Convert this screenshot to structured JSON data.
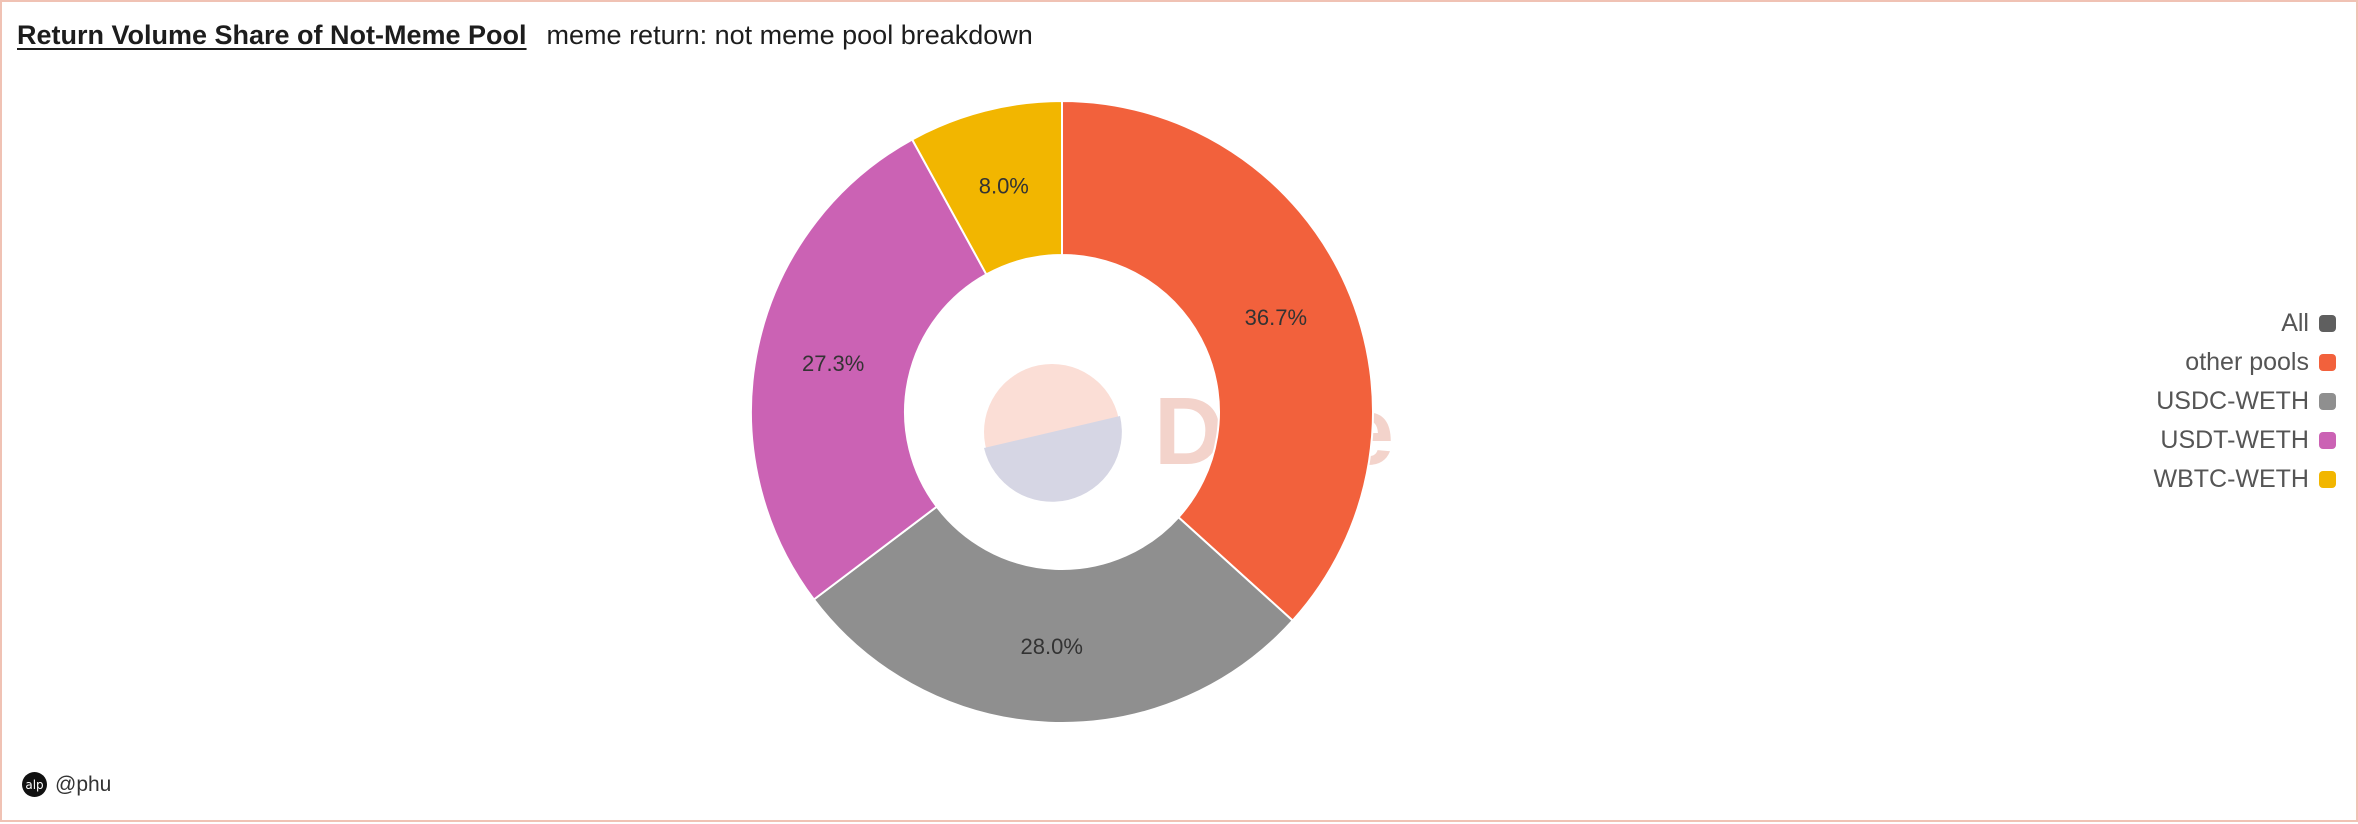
{
  "header": {
    "title": "Return Volume Share of Not-Meme Pool",
    "subtitle": "meme return: not meme pool breakdown"
  },
  "footer": {
    "author": "@phu",
    "avatar_text": "alp"
  },
  "watermark": {
    "text": "Dune"
  },
  "legend": [
    {
      "label": "All",
      "color": "#5f5f5f"
    },
    {
      "label": "other pools",
      "color": "#f2613c"
    },
    {
      "label": "USDC-WETH",
      "color": "#8f8f8f"
    },
    {
      "label": "USDT-WETH",
      "color": "#cb62b4"
    },
    {
      "label": "WBTC-WETH",
      "color": "#f2b600"
    }
  ],
  "chart_data": {
    "type": "pie",
    "variant": "donut",
    "start_angle_deg": 0,
    "direction": "clockwise",
    "categories": [
      "other pools",
      "USDC-WETH",
      "USDT-WETH",
      "WBTC-WETH"
    ],
    "values": [
      36.7,
      28.0,
      27.3,
      8.0
    ],
    "labels": [
      "36.7%",
      "28.0%",
      "27.3%",
      "8.0%"
    ],
    "colors": [
      "#f2613c",
      "#8f8f8f",
      "#cb62b4",
      "#f2b600"
    ],
    "legend_position": "right",
    "title": "Return Volume Share of Not-Meme Pool"
  }
}
